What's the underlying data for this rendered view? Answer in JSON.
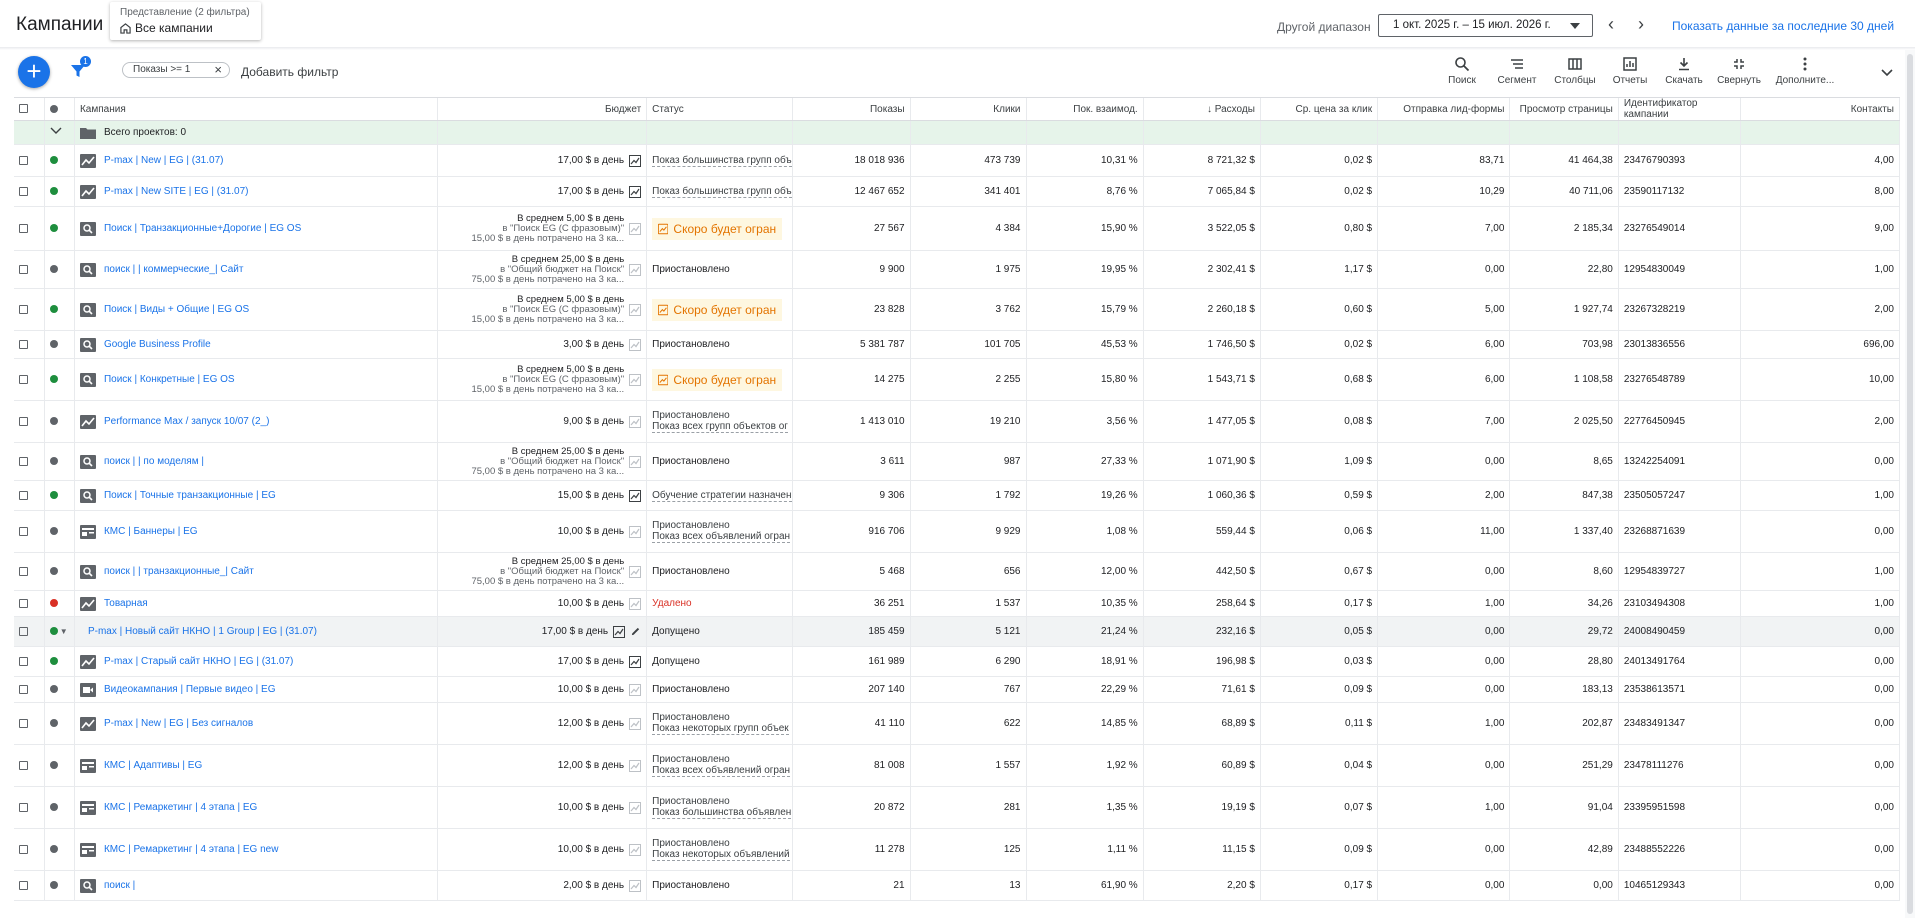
{
  "header": {
    "title": "Кампании",
    "view_label": "Представление (2 фильтра)",
    "view_value": "Все кампании",
    "range_label": "Другой диапазон",
    "range_value": "1 окт. 2025 г. – 15 июл. 2026 г.",
    "last30_label": "Показать данные за последние 30 дней"
  },
  "toolbar": {
    "filter_badge": "1",
    "chip_label": "Показы >= 1",
    "add_filter": "Добавить фильтр",
    "tools": [
      "Поиск",
      "Сегмент",
      "Столбцы",
      "Отчеты",
      "Скачать",
      "Свернуть",
      "Дополните..."
    ]
  },
  "columns": {
    "campaign": "Кампания",
    "budget": "Бюджет",
    "status": "Статус",
    "impressions": "Показы",
    "clicks": "Клики",
    "interaction_rate": "Пок. взаимод.",
    "cost": "Расходы",
    "avg_cpc": "Ср. цена за клик",
    "lead_forms": "Отправка лид-формы",
    "page_views": "Просмотр страницы",
    "campaign_id": "Идентификатор кампании",
    "contacts": "Контакты"
  },
  "total_row": {
    "label": "Всего проектов: 0"
  },
  "rows": [
    {
      "status_dot": "green",
      "type_icon": "pmax",
      "name": "P-max | New | EG | (31.07)",
      "budget": "17,00 $ в день",
      "budget_multi": false,
      "status": "Показ большинства групп объ",
      "status_kind": "dashed",
      "impressions": "18 018 936",
      "clicks": "473 739",
      "rate": "10,31 %",
      "cost": "8 721,32 $",
      "cpc": "0,02 $",
      "leads": "83,71",
      "pviews": "41 464,38",
      "cid": "23476790393",
      "contacts": "4,00"
    },
    {
      "status_dot": "green",
      "type_icon": "pmax",
      "name": "P-max | New SITE | EG | (31.07)",
      "budget": "17,00 $ в день",
      "budget_multi": false,
      "status": "Показ большинства групп объ",
      "status_kind": "dashed",
      "impressions": "12 467 652",
      "clicks": "341 401",
      "rate": "8,76 %",
      "cost": "7 065,84 $",
      "cpc": "0,02 $",
      "leads": "10,29",
      "pviews": "40 711,06",
      "cid": "23590117132",
      "contacts": "8,00"
    },
    {
      "status_dot": "green",
      "type_icon": "search",
      "name": "Поиск | Транзакционные+Дорогие | EG OS",
      "budget_multi": true,
      "b1": "В среднем 5,00 $ в день",
      "b2": "в \"Поиск EG (С фразовым)\"",
      "b3": "15,00 $ в день потрачено на 3 ка...",
      "status": "Скоро будет огран",
      "status_kind": "warn",
      "impressions": "27 567",
      "clicks": "4 384",
      "rate": "15,90 %",
      "cost": "3 522,05 $",
      "cpc": "0,80 $",
      "leads": "7,00",
      "pviews": "2 185,34",
      "cid": "23276549014",
      "contacts": "9,00"
    },
    {
      "status_dot": "grey",
      "type_icon": "search",
      "name": "поиск |        | коммерческие_| Сайт",
      "budget_multi": true,
      "b1": "В среднем 25,00 $ в день",
      "b2": "в \"Общий бюджет на Поиск\"",
      "b3": "75,00 $ в день потрачено на 3 ка...",
      "status": "Приостановлено",
      "status_kind": "plain",
      "impressions": "9 900",
      "clicks": "1 975",
      "rate": "19,95 %",
      "cost": "2 302,41 $",
      "cpc": "1,17 $",
      "leads": "0,00",
      "pviews": "22,80",
      "cid": "12954830049",
      "contacts": "1,00"
    },
    {
      "status_dot": "green",
      "type_icon": "search",
      "name": "Поиск | Виды + Общие | EG OS",
      "budget_multi": true,
      "b1": "В среднем 5,00 $ в день",
      "b2": "в \"Поиск EG (С фразовым)\"",
      "b3": "15,00 $ в день потрачено на 3 ка...",
      "status": "Скоро будет огран",
      "status_kind": "warn",
      "impressions": "23 828",
      "clicks": "3 762",
      "rate": "15,79 %",
      "cost": "2 260,18 $",
      "cpc": "0,60 $",
      "leads": "5,00",
      "pviews": "1 927,74",
      "cid": "23267328219",
      "contacts": "2,00"
    },
    {
      "status_dot": "grey",
      "type_icon": "search",
      "name": "Google Business Profile",
      "budget": "3,00 $ в день",
      "budget_multi": false,
      "status": "Приостановлено",
      "status_kind": "plain",
      "impressions": "5 381 787",
      "clicks": "101 705",
      "rate": "45,53 %",
      "cost": "1 746,50 $",
      "cpc": "0,02 $",
      "leads": "6,00",
      "pviews": "703,98",
      "cid": "23013836556",
      "contacts": "696,00"
    },
    {
      "status_dot": "green",
      "type_icon": "search",
      "name": "Поиск | Конкретные | EG OS",
      "budget_multi": true,
      "b1": "В среднем 5,00 $ в день",
      "b2": "в \"Поиск EG (С фразовым)\"",
      "b3": "15,00 $ в день потрачено на 3 ка...",
      "status": "Скоро будет огран",
      "status_kind": "warn",
      "impressions": "14 275",
      "clicks": "2 255",
      "rate": "15,80 %",
      "cost": "1 543,71 $",
      "cpc": "0,68 $",
      "leads": "6,00",
      "pviews": "1 108,58",
      "cid": "23276548789",
      "contacts": "10,00"
    },
    {
      "status_dot": "grey",
      "type_icon": "pmax",
      "name": "Performance Max / запуск 10/07 (2_)",
      "budget": "9,00 $ в день",
      "budget_multi": false,
      "status": "Приостановлено",
      "status2": "Показ всех групп объектов ог",
      "status_kind": "two",
      "impressions": "1 413 010",
      "clicks": "19 210",
      "rate": "3,56 %",
      "cost": "1 477,05 $",
      "cpc": "0,08 $",
      "leads": "7,00",
      "pviews": "2 025,50",
      "cid": "22776450945",
      "contacts": "2,00"
    },
    {
      "status_dot": "grey",
      "type_icon": "search",
      "name": "поиск |        | по моделям |",
      "budget_multi": true,
      "b1": "В среднем 25,00 $ в день",
      "b2": "в \"Общий бюджет на Поиск\"",
      "b3": "75,00 $ в день потрачено на 3 ка...",
      "status": "Приостановлено",
      "status_kind": "plain",
      "impressions": "3 611",
      "clicks": "987",
      "rate": "27,33 %",
      "cost": "1 071,90 $",
      "cpc": "1,09 $",
      "leads": "0,00",
      "pviews": "8,65",
      "cid": "13242254091",
      "contacts": "0,00"
    },
    {
      "status_dot": "green",
      "type_icon": "search",
      "name": "Поиск | Точные транзакционные | EG",
      "budget": "15,00 $ в день",
      "budget_multi": false,
      "status": "Обучение стратегии назначен",
      "status_kind": "dashed",
      "impressions": "9 306",
      "clicks": "1 792",
      "rate": "19,26 %",
      "cost": "1 060,36 $",
      "cpc": "0,59 $",
      "leads": "2,00",
      "pviews": "847,38",
      "cid": "23505057247",
      "contacts": "1,00"
    },
    {
      "status_dot": "grey",
      "type_icon": "display",
      "name": "КМС | Баннеры | EG",
      "budget": "10,00 $ в день",
      "budget_multi": false,
      "status": "Приостановлено",
      "status2": "Показ всех объявлений огран",
      "status_kind": "two",
      "impressions": "916 706",
      "clicks": "9 929",
      "rate": "1,08 %",
      "cost": "559,44 $",
      "cpc": "0,06 $",
      "leads": "11,00",
      "pviews": "1 337,40",
      "cid": "23268871639",
      "contacts": "0,00"
    },
    {
      "status_dot": "grey",
      "type_icon": "search",
      "name": "поиск |        | транзакционные_| Сайт",
      "budget_multi": true,
      "b1": "В среднем 25,00 $ в день",
      "b2": "в \"Общий бюджет на Поиск\"",
      "b3": "75,00 $ в день потрачено на 3 ка...",
      "status": "Приостановлено",
      "status_kind": "plain",
      "impressions": "5 468",
      "clicks": "656",
      "rate": "12,00 %",
      "cost": "442,50 $",
      "cpc": "0,67 $",
      "leads": "0,00",
      "pviews": "8,60",
      "cid": "12954839727",
      "contacts": "1,00"
    },
    {
      "status_dot": "red",
      "type_icon": "pmax",
      "name": "Товарная",
      "budget": "10,00 $ в день",
      "budget_multi": false,
      "status": "Удалено",
      "status_kind": "deleted",
      "impressions": "36 251",
      "clicks": "1 537",
      "rate": "10,35 %",
      "cost": "258,64 $",
      "cpc": "0,17 $",
      "leads": "1,00",
      "pviews": "34,26",
      "cid": "23103494308",
      "contacts": "1,00"
    },
    {
      "status_dot": "green",
      "type_icon": "pmax",
      "name": "P-max | Новый сайт НКНО | 1 Group | EG | (31.07)",
      "budget": "17,00 $ в день",
      "budget_multi": false,
      "status": "Допущено",
      "status_kind": "plain",
      "impressions": "185 459",
      "clicks": "5 121",
      "rate": "21,24 %",
      "cost": "232,16 $",
      "cpc": "0,05 $",
      "leads": "0,00",
      "pviews": "29,72",
      "cid": "24008490459",
      "contacts": "0,00",
      "hover": true
    },
    {
      "status_dot": "green",
      "type_icon": "pmax",
      "name": "P-max | Старый сайт НКНО | EG | (31.07)",
      "budget": "17,00 $ в день",
      "budget_multi": false,
      "status": "Допущено",
      "status_kind": "plain",
      "impressions": "161 989",
      "clicks": "6 290",
      "rate": "18,91 %",
      "cost": "196,98 $",
      "cpc": "0,03 $",
      "leads": "0,00",
      "pviews": "28,80",
      "cid": "24013491764",
      "contacts": "0,00"
    },
    {
      "status_dot": "grey",
      "type_icon": "video",
      "name": "Видеокампания | Первые видео | EG",
      "budget": "10,00 $ в день",
      "budget_multi": false,
      "status": "Приостановлено",
      "status_kind": "plain",
      "impressions": "207 140",
      "clicks": "767",
      "rate": "22,29 %",
      "cost": "71,61 $",
      "cpc": "0,09 $",
      "leads": "0,00",
      "pviews": "183,13",
      "cid": "23538613571",
      "contacts": "0,00"
    },
    {
      "status_dot": "grey",
      "type_icon": "pmax",
      "name": "P-max | New | EG | Без сигналов",
      "budget": "12,00 $ в день",
      "budget_multi": false,
      "status": "Приостановлено",
      "status2": "Показ некоторых групп объек",
      "status_kind": "two",
      "impressions": "41 110",
      "clicks": "622",
      "rate": "14,85 %",
      "cost": "68,89 $",
      "cpc": "0,11 $",
      "leads": "1,00",
      "pviews": "202,87",
      "cid": "23483491347",
      "contacts": "0,00"
    },
    {
      "status_dot": "grey",
      "type_icon": "display",
      "name": "КМС | Адаптивы | EG",
      "budget": "12,00 $ в день",
      "budget_multi": false,
      "status": "Приостановлено",
      "status2": "Показ всех объявлений огран",
      "status_kind": "two",
      "impressions": "81 008",
      "clicks": "1 557",
      "rate": "1,92 %",
      "cost": "60,89 $",
      "cpc": "0,04 $",
      "leads": "0,00",
      "pviews": "251,29",
      "cid": "23478111276",
      "contacts": "0,00"
    },
    {
      "status_dot": "grey",
      "type_icon": "display",
      "name": "КМС | Ремаркетинг | 4 этапа | EG",
      "budget": "10,00 $ в день",
      "budget_multi": false,
      "status": "Приостановлено",
      "status2": "Показ большинства объявлен",
      "status_kind": "two",
      "impressions": "20 872",
      "clicks": "281",
      "rate": "1,35 %",
      "cost": "19,19 $",
      "cpc": "0,07 $",
      "leads": "1,00",
      "pviews": "91,04",
      "cid": "23395951598",
      "contacts": "0,00"
    },
    {
      "status_dot": "grey",
      "type_icon": "display",
      "name": "КМС | Ремаркетинг | 4 этапа | EG new",
      "budget": "10,00 $ в день",
      "budget_multi": false,
      "status": "Приостановлено",
      "status2": "Показ некоторых объявлений",
      "status_kind": "two",
      "impressions": "11 278",
      "clicks": "125",
      "rate": "1,11 %",
      "cost": "11,15 $",
      "cpc": "0,09 $",
      "leads": "0,00",
      "pviews": "42,89",
      "cid": "23488552226",
      "contacts": "0,00"
    },
    {
      "status_dot": "grey",
      "type_icon": "search",
      "name": "поиск |",
      "budget": "2,00 $ в день",
      "budget_multi": false,
      "status": "Приостановлено",
      "status_kind": "plain",
      "impressions": "21",
      "clicks": "13",
      "rate": "61,90 %",
      "cost": "2,20 $",
      "cpc": "0,17 $",
      "leads": "0,00",
      "pviews": "0,00",
      "cid": "10465129343",
      "contacts": "0,00"
    }
  ],
  "colors": {
    "accent": "#1a73e8",
    "green": "#1e8e3e",
    "warn": "#e37400",
    "deleted": "#d93025"
  }
}
